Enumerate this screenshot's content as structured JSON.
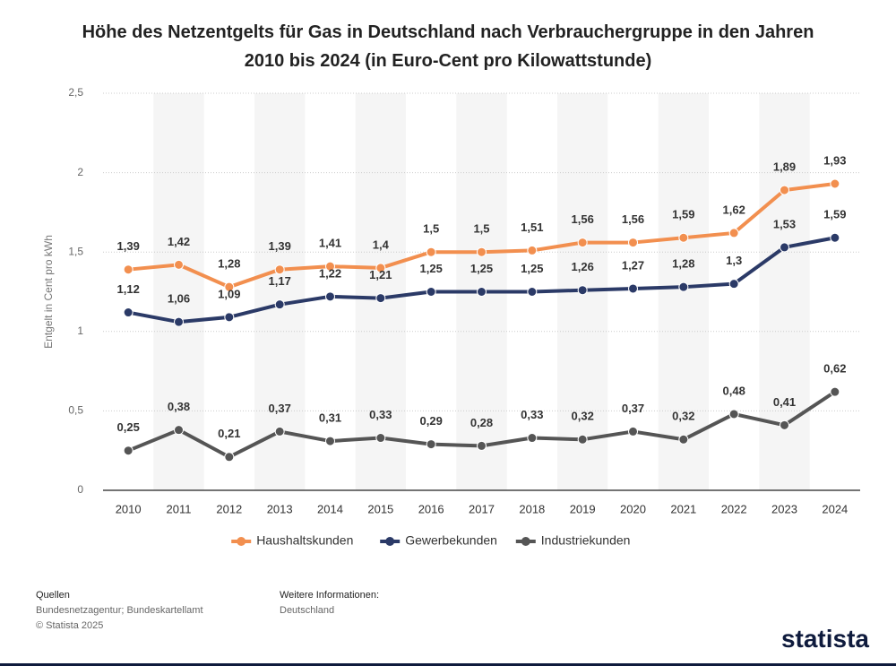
{
  "chart_data": {
    "type": "line",
    "title": "Höhe des Netzentgelts für Gas in Deutschland nach Verbrauchergruppe in den Jahren 2010 bis 2024 (in Euro-Cent pro Kilowattstunde)",
    "y_label": "Entgelt in Cent pro kWh",
    "categories": [
      "2010",
      "2011",
      "2012",
      "2013",
      "2014",
      "2015",
      "2016",
      "2017",
      "2018",
      "2019",
      "2020",
      "2021",
      "2022",
      "2023",
      "2024"
    ],
    "series": [
      {
        "name": "Haushaltskunden",
        "color": "#f28f4f",
        "values": [
          1.39,
          1.42,
          1.28,
          1.39,
          1.41,
          1.4,
          1.5,
          1.5,
          1.51,
          1.56,
          1.56,
          1.59,
          1.62,
          1.89,
          1.93
        ],
        "value_labels": [
          "1,39",
          "1,42",
          "1,28",
          "1,39",
          "1,41",
          "1,4",
          "1,5",
          "1,5",
          "1,51",
          "1,56",
          "1,56",
          "1,59",
          "1,62",
          "1,89",
          "1,93"
        ]
      },
      {
        "name": "Gewerbekunden",
        "color": "#2b3a67",
        "values": [
          1.12,
          1.06,
          1.09,
          1.17,
          1.22,
          1.21,
          1.25,
          1.25,
          1.25,
          1.26,
          1.27,
          1.28,
          1.3,
          1.53,
          1.59
        ],
        "value_labels": [
          "1,12",
          "1,06",
          "1,09",
          "1,17",
          "1,22",
          "1,21",
          "1,25",
          "1,25",
          "1,25",
          "1,26",
          "1,27",
          "1,28",
          "1,3",
          "1,53",
          "1,59"
        ]
      },
      {
        "name": "Industriekunden",
        "color": "#555555",
        "values": [
          0.25,
          0.38,
          0.21,
          0.37,
          0.31,
          0.33,
          0.29,
          0.28,
          0.33,
          0.32,
          0.37,
          0.32,
          0.48,
          0.41,
          0.62
        ],
        "value_labels": [
          "0,25",
          "0,38",
          "0,21",
          "0,37",
          "0,31",
          "0,33",
          "0,29",
          "0,28",
          "0,33",
          "0,32",
          "0,37",
          "0,32",
          "0,48",
          "0,41",
          "0,62"
        ]
      }
    ],
    "ylim": [
      0,
      2.5
    ],
    "yticks": [
      0,
      {
        "value": 0.5,
        "label": "0,5"
      },
      1,
      {
        "value": 1.5,
        "label": "1,5"
      },
      2,
      {
        "value": 2.5,
        "label": "2,5"
      }
    ],
    "grid": true,
    "legend": "bottom"
  },
  "footer": {
    "sources_title": "Quellen",
    "sources": "Bundesnetzagentur; Bundeskartellamt",
    "copyright": "© Statista 2025",
    "info_title": "Weitere Informationen:",
    "info": "Deutschland",
    "logo": "statista"
  }
}
